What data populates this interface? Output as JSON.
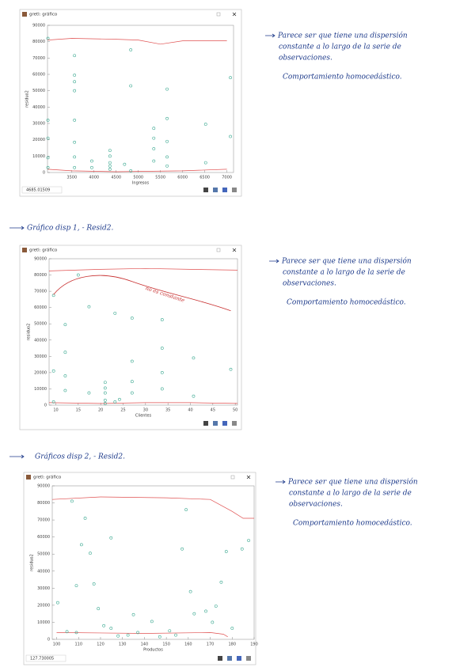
{
  "chart_data": [
    {
      "type": "scatter",
      "title": "gretl: gráfico",
      "x_label": "Ingresos",
      "y_label": "residuo2",
      "status": "4685.01509",
      "xlim": [
        2950,
        7150
      ],
      "ylim": [
        0,
        90000
      ],
      "xticks": [
        3500,
        4000,
        4500,
        5000,
        5500,
        6000,
        6500,
        7000
      ],
      "yticks": [
        0,
        10000,
        20000,
        30000,
        40000,
        50000,
        60000,
        70000,
        80000,
        90000
      ],
      "color": "#3aa890",
      "x": [
        2960,
        2960,
        2960,
        2960,
        2960,
        3560,
        3560,
        3560,
        3560,
        3560,
        3560,
        3560,
        3560,
        3950,
        3950,
        4360,
        4360,
        4360,
        4360,
        4360,
        4690,
        4830,
        4830,
        4830,
        5350,
        5350,
        5350,
        5350,
        5650,
        5650,
        5650,
        5650,
        5650,
        6520,
        6520,
        7080,
        7080
      ],
      "y": [
        82000,
        32000,
        21000,
        9000,
        3000,
        71500,
        59500,
        55500,
        50000,
        32000,
        18500,
        9500,
        3000,
        7000,
        3000,
        13500,
        10000,
        6000,
        4000,
        2000,
        5000,
        75000,
        53000,
        1000,
        27000,
        21000,
        14500,
        7000,
        51000,
        33000,
        19000,
        9500,
        4000,
        29500,
        6000,
        58000,
        22000
      ],
      "curves": [
        {
          "color": "#e05050",
          "x": [
            2950,
            3500,
            4500,
            5000,
            5500,
            6000,
            7000
          ],
          "y": [
            81000,
            82000,
            81500,
            81000,
            78500,
            80500,
            80500
          ]
        },
        {
          "color": "#e05050",
          "x": [
            2950,
            3500,
            4500,
            6000,
            7000
          ],
          "y": [
            2000,
            1000,
            500,
            1000,
            2000
          ]
        }
      ]
    },
    {
      "type": "scatter",
      "title": "gretl: gráfico",
      "x_label": "Clientes",
      "y_label": "residuo2",
      "annotation": "no es constante",
      "xlim": [
        8.5,
        50.5
      ],
      "ylim": [
        0,
        90000
      ],
      "xticks": [
        10,
        15,
        20,
        25,
        30,
        35,
        40,
        45,
        50
      ],
      "yticks": [
        0,
        10000,
        20000,
        30000,
        40000,
        50000,
        60000,
        70000,
        80000,
        90000
      ],
      "color": "#3aa890",
      "x": [
        9.5,
        9.5,
        9.5,
        12.1,
        12.1,
        12.1,
        12.1,
        15,
        17.4,
        17.4,
        21,
        21,
        21,
        21,
        21,
        23.2,
        23.2,
        24.2,
        27,
        27,
        27,
        27,
        33.7,
        33.7,
        33.7,
        33.7,
        40.7,
        40.7,
        49
      ],
      "y": [
        67500,
        21000,
        2000,
        49500,
        32500,
        18000,
        9000,
        80000,
        60500,
        7500,
        14000,
        10500,
        7500,
        3000,
        1000,
        56500,
        2000,
        3500,
        53500,
        27000,
        14500,
        7500,
        52500,
        35000,
        20000,
        10000,
        29000,
        5500,
        22000
      ],
      "curves": [
        {
          "color": "#e05050",
          "x": [
            8.5,
            20,
            30,
            40,
            50.5
          ],
          "y": [
            82500,
            83500,
            84000,
            83500,
            83000
          ]
        },
        {
          "color": "#e05050",
          "x": [
            8.5,
            20,
            30,
            40,
            50.5
          ],
          "y": [
            1500,
            1000,
            1500,
            1500,
            1000
          ]
        }
      ]
    },
    {
      "type": "scatter",
      "title": "gretl: gráfico",
      "x_label": "Productos",
      "y_label": "residuo2",
      "status": "127.730005",
      "xlim": [
        98,
        190
      ],
      "ylim": [
        0,
        90000
      ],
      "xticks": [
        100,
        110,
        120,
        130,
        140,
        150,
        160,
        170,
        180,
        190
      ],
      "yticks": [
        0,
        10000,
        20000,
        30000,
        40000,
        50000,
        60000,
        70000,
        80000,
        90000
      ],
      "color": "#3aa890",
      "x": [
        100.5,
        104.7,
        107,
        109,
        109,
        111.3,
        113,
        115.3,
        117,
        119,
        121.5,
        124.8,
        124.8,
        128,
        132.5,
        135,
        137,
        143.4,
        147,
        151.5,
        154.3,
        157.2,
        159,
        161,
        162.7,
        168,
        171,
        172.6,
        175,
        177.3,
        180,
        184.5,
        187.5
      ],
      "y": [
        21500,
        4500,
        81000,
        31500,
        4000,
        55500,
        71000,
        50500,
        32500,
        18000,
        8000,
        59500,
        6500,
        2000,
        2500,
        14500,
        4000,
        10500,
        1500,
        5000,
        2500,
        53000,
        76000,
        28000,
        15000,
        16500,
        10000,
        19500,
        33500,
        51500,
        6500,
        53000,
        58000
      ],
      "curves": [
        {
          "color": "#e05050",
          "x": [
            98,
            120,
            150,
            170,
            180,
            185,
            190
          ],
          "y": [
            82000,
            83500,
            83000,
            82000,
            75000,
            71000,
            71000
          ]
        },
        {
          "color": "#e05050",
          "x": [
            100,
            140,
            170,
            176,
            178
          ],
          "y": [
            4000,
            3500,
            4000,
            3000,
            1500
          ]
        }
      ]
    }
  ],
  "notes": [
    {
      "lines": [
        "Parece ser que tiene una dispersión",
        "constante a lo largo de la serie de",
        "observaciones."
      ],
      "conclusion": "Comportamiento homocedástico."
    },
    {
      "lines": [
        "Parece ser que tiene una dispersión",
        "constante a lo largo de la serie de",
        "observaciones."
      ],
      "conclusion": "Comportamiento homocedástico."
    },
    {
      "lines": [
        "Parece ser que tiene una dispersión",
        "constante a lo largo de la serie de",
        "observaciones."
      ],
      "conclusion": "Comportamiento homocedástico."
    }
  ],
  "captions": [
    "Gráfico disp 1, - Resid2.",
    "Gráficos disp 2, - Resid2."
  ]
}
